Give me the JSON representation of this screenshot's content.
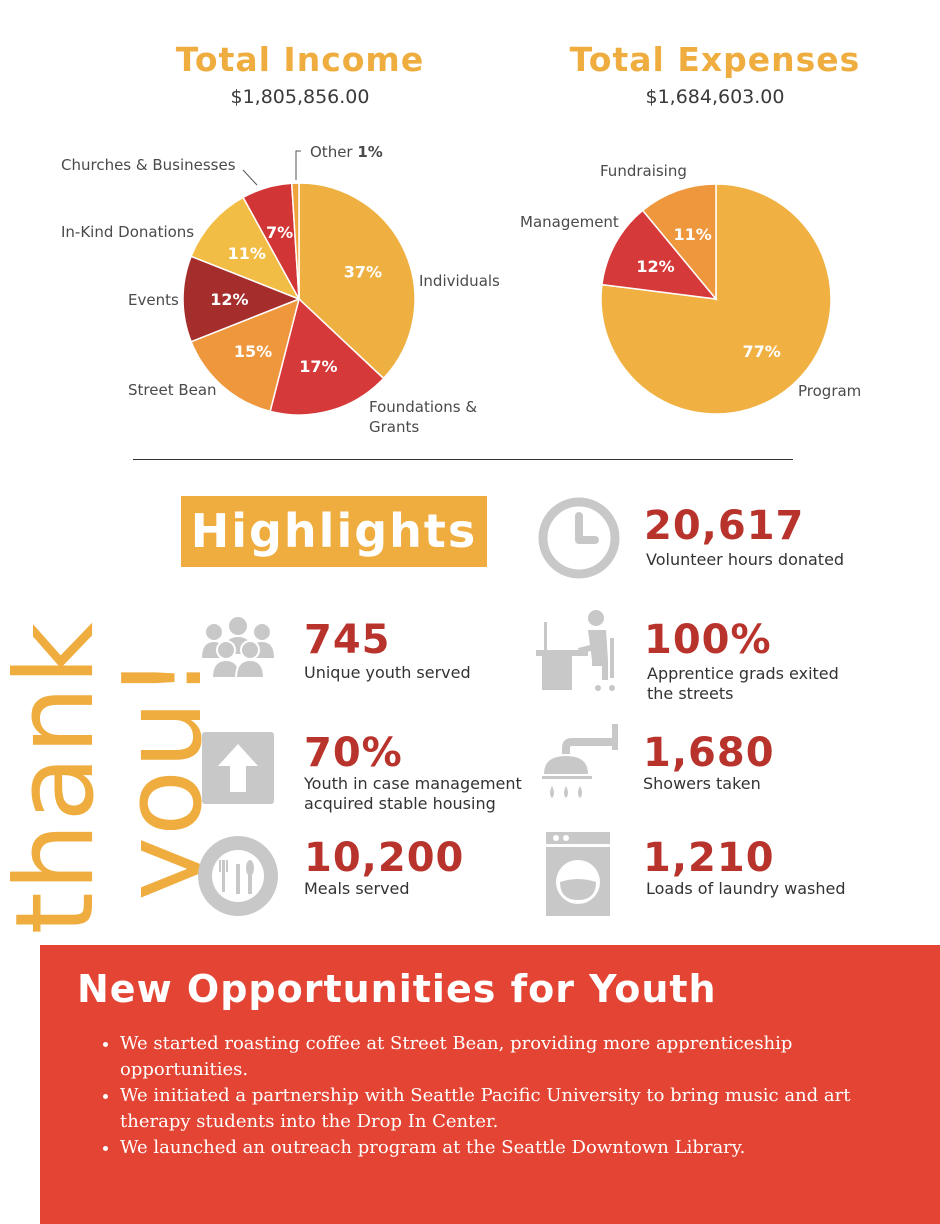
{
  "chart_data": [
    {
      "type": "pie",
      "title": "Total Income",
      "subtitle": "$1,805,856.00",
      "categories": [
        "Individuals",
        "Foundations & Grants",
        "Street Bean",
        "Events",
        "In-Kind Donations",
        "Churches & Businesses",
        "Other"
      ],
      "values": [
        37,
        17,
        15,
        12,
        11,
        7,
        1
      ],
      "value_labels": [
        "37%",
        "17%",
        "15%",
        "12%",
        "11%",
        "7%",
        "1%"
      ],
      "colors": [
        "#efb042",
        "#d6393a",
        "#ee973c",
        "#a52e2d",
        "#f2bd44",
        "#d13535",
        "#f0a23c"
      ]
    },
    {
      "type": "pie",
      "title": "Total Expenses",
      "subtitle": "$1,684,603.00",
      "categories": [
        "Program",
        "Management",
        "Fundraising"
      ],
      "values": [
        77,
        12,
        11
      ],
      "value_labels": [
        "77%",
        "12%",
        "11%"
      ],
      "colors": [
        "#f0b042",
        "#d6393a",
        "#ee973c"
      ]
    }
  ],
  "thank_you": "thank you!",
  "highlights": {
    "title": "Highlights",
    "stats": [
      {
        "value": "20,617",
        "label": "Volunteer hours donated",
        "icon": "clock-icon"
      },
      {
        "value": "745",
        "label": "Unique youth served",
        "icon": "group-icon"
      },
      {
        "value": "100%",
        "label_lines": [
          "Apprentice grads exited",
          "the streets"
        ],
        "icon": "desk-worker-icon"
      },
      {
        "value": "70%",
        "label_lines": [
          "Youth in case management",
          "acquired stable housing"
        ],
        "icon": "up-arrow-icon"
      },
      {
        "value": "1,680",
        "label": "Showers taken",
        "icon": "shower-icon"
      },
      {
        "value": "10,200",
        "label": "Meals served",
        "icon": "plate-icon"
      },
      {
        "value": "1,210",
        "label": "Loads of laundry washed",
        "icon": "washing-machine-icon"
      }
    ]
  },
  "opportunities": {
    "title": "New Opportunities for Youth",
    "items": [
      "We started roasting coffee at Street Bean, providing more apprenticeship opportunities.",
      "We initiated a partnership with Seattle Pacific University to bring music and art therapy students into the Drop In Center.",
      "We launched an outreach program at the Seattle Downtown Library."
    ]
  },
  "colors": {
    "accent": "#efad3f",
    "stat_red": "#b8332b",
    "banner_red": "#e34433",
    "icon_gray": "#c8c8c8"
  }
}
